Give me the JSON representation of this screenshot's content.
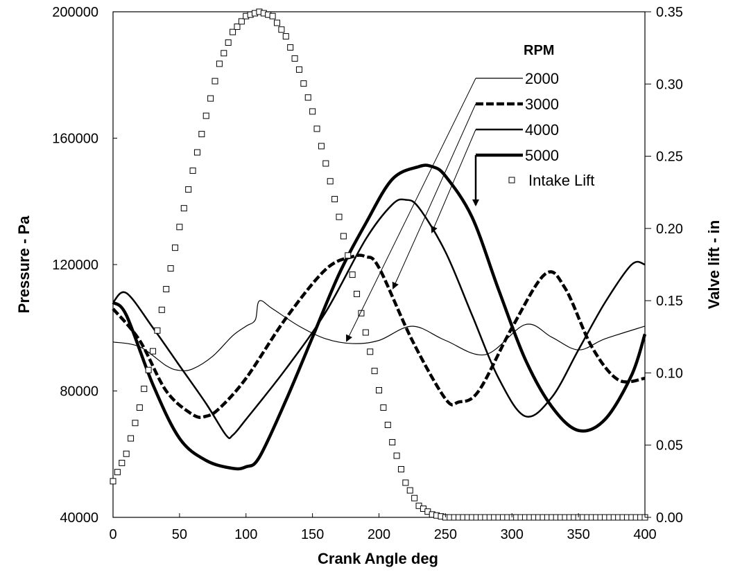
{
  "chart_data": {
    "type": "line",
    "xlabel": "Crank Angle deg",
    "ylabel": "Pressure - Pa",
    "y2label": "Valve lift - in",
    "xlim": [
      0,
      400
    ],
    "ylim": [
      40000,
      200000
    ],
    "y2lim": [
      0,
      0.35
    ],
    "x_ticks": [
      "0",
      "50",
      "100",
      "150",
      "200",
      "250",
      "300",
      "350",
      "400"
    ],
    "y_ticks": [
      "40000",
      "80000",
      "120000",
      "160000",
      "200000"
    ],
    "y2_ticks": [
      "0.00",
      "0.05",
      "0.10",
      "0.15",
      "0.20",
      "0.25",
      "0.30",
      "0.35"
    ],
    "legend_title": "RPM",
    "grid": false,
    "series": [
      {
        "name": "2000",
        "axis": "left",
        "style": "thin",
        "color": "#000000",
        "x": [
          0,
          20,
          40,
          50,
          60,
          75,
          90,
          100,
          107,
          110,
          120,
          140,
          160,
          180,
          200,
          225,
          250,
          280,
          310,
          330,
          350,
          370,
          400
        ],
        "y": [
          95500,
          94000,
          88000,
          86500,
          87000,
          91000,
          97500,
          100500,
          102500,
          108500,
          106000,
          100500,
          96500,
          95000,
          96000,
          100500,
          96000,
          91500,
          101000,
          97000,
          93000,
          96500,
          100500
        ]
      },
      {
        "name": "3000",
        "axis": "left",
        "style": "dashed",
        "color": "#000000",
        "x": [
          0,
          20,
          40,
          60,
          70,
          80,
          100,
          130,
          160,
          180,
          190,
          200,
          225,
          250,
          260,
          275,
          300,
          325,
          340,
          360,
          380,
          400
        ],
        "y": [
          106000,
          96000,
          80000,
          72500,
          72000,
          74500,
          84000,
          103000,
          118500,
          122500,
          122500,
          119000,
          96000,
          77500,
          76500,
          80000,
          100000,
          117000,
          112500,
          94000,
          83500,
          84000
        ]
      },
      {
        "name": "4000",
        "axis": "left",
        "style": "medium",
        "color": "#000000",
        "x": [
          0,
          10,
          30,
          50,
          70,
          85,
          90,
          100,
          130,
          160,
          190,
          210,
          220,
          230,
          250,
          270,
          290,
          310,
          330,
          350,
          370,
          390,
          400
        ],
        "y": [
          108000,
          111000,
          100000,
          88000,
          76000,
          66000,
          66000,
          71000,
          87000,
          105000,
          128000,
          139000,
          140500,
          138000,
          124000,
          104000,
          84000,
          72000,
          78000,
          93000,
          108000,
          120000,
          120000
        ]
      },
      {
        "name": "5000",
        "axis": "left",
        "style": "thick",
        "color": "#000000",
        "x": [
          0,
          10,
          30,
          50,
          70,
          90,
          100,
          110,
          130,
          150,
          170,
          190,
          210,
          230,
          240,
          250,
          270,
          290,
          310,
          330,
          350,
          370,
          390,
          400
        ],
        "y": [
          108000,
          104000,
          82000,
          65000,
          58000,
          55500,
          56000,
          59000,
          77000,
          97000,
          117000,
          133000,
          147000,
          151000,
          151000,
          148000,
          135000,
          112000,
          90000,
          75000,
          67500,
          71000,
          85000,
          98000
        ]
      },
      {
        "name": "Intake Lift",
        "axis": "right",
        "style": "markers",
        "color": "#000000",
        "x": [
          0,
          10,
          20,
          30,
          40,
          50,
          60,
          70,
          80,
          90,
          100,
          110,
          120,
          130,
          140,
          150,
          160,
          170,
          180,
          190,
          200,
          210,
          220,
          230,
          240,
          250,
          260,
          270,
          280,
          290,
          300,
          310,
          320,
          330,
          340,
          350,
          360,
          370,
          380,
          390,
          400
        ],
        "y": [
          0.025,
          0.044,
          0.076,
          0.115,
          0.158,
          0.201,
          0.24,
          0.278,
          0.314,
          0.336,
          0.347,
          0.35,
          0.347,
          0.333,
          0.31,
          0.281,
          0.245,
          0.208,
          0.168,
          0.128,
          0.088,
          0.052,
          0.024,
          0.008,
          0.002,
          0.0,
          0.0,
          0.0,
          0.0,
          0.0,
          0.0,
          0.0,
          0.0,
          0.0,
          0.0,
          0.0,
          0.0,
          0.0,
          0.0,
          0.0,
          0.0
        ]
      }
    ],
    "legend_entries": [
      "2000",
      "3000",
      "4000",
      "5000",
      "Intake Lift"
    ]
  }
}
